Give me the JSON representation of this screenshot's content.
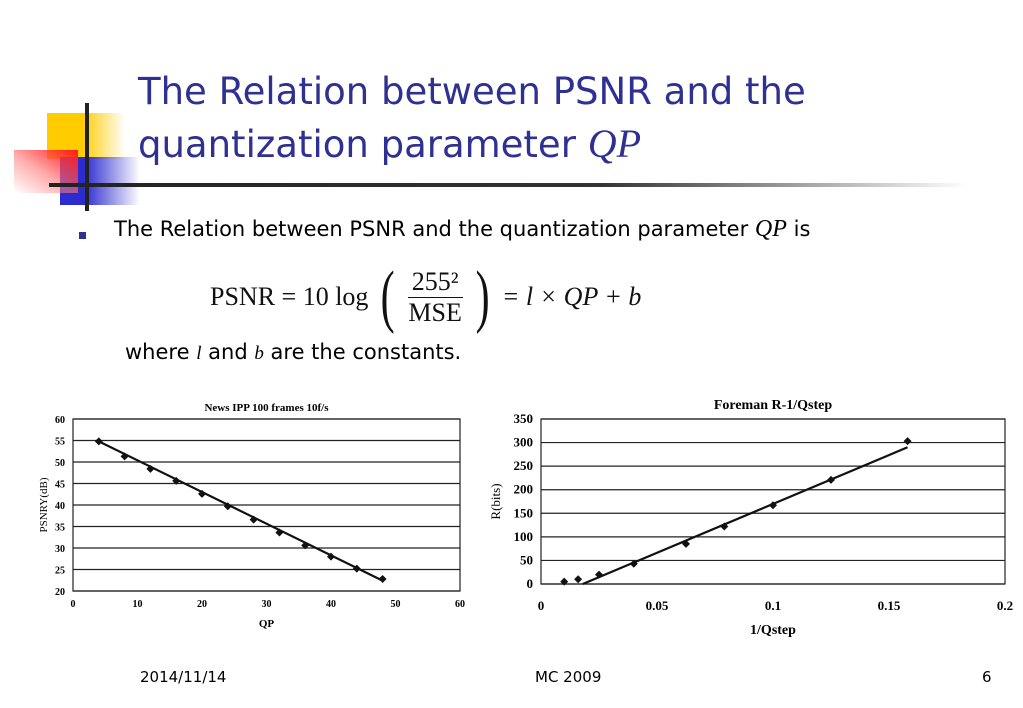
{
  "slide": {
    "title_line1": "The Relation between PSNR and the",
    "title_line2": "quantization parameter",
    "title_var": "QP",
    "bullet_text": "The Relation between PSNR and the quantization parameter",
    "bullet_var": "QP",
    "bullet_suffix": "is",
    "formula": {
      "lhs": "PSNR = 10 log",
      "numerator": "255²",
      "denominator": "MSE",
      "rhs": "= l × QP + b"
    },
    "where_prefix": "where",
    "where_var1": "l",
    "where_mid": "and",
    "where_var2": "b",
    "where_suffix": "are the constants."
  },
  "footer": {
    "date": "2014/11/14",
    "center": "MC 2009",
    "page": "6"
  },
  "colors": {
    "title": "#2E3192",
    "yellow": "#FFCC00",
    "blue": "#2B2BD0",
    "red": "#FF1A1A"
  },
  "chart_data": [
    {
      "type": "line",
      "title": "News IPP 100 frames 10f/s",
      "xlabel": "QP",
      "ylabel": "PSNRY(dB)",
      "xlim": [
        0,
        60
      ],
      "ylim": [
        20,
        60
      ],
      "xticks": [
        "0",
        "10",
        "20",
        "30",
        "40",
        "50",
        "60"
      ],
      "yticks": [
        "20",
        "25",
        "30",
        "35",
        "40",
        "45",
        "50",
        "55",
        "60"
      ],
      "grid": "horizontal",
      "x": [
        4,
        8,
        12,
        16,
        20,
        24,
        28,
        32,
        36,
        40,
        44,
        48
      ],
      "y": [
        54.8,
        51.3,
        48.4,
        45.6,
        42.6,
        39.7,
        36.6,
        33.6,
        30.6,
        28.0,
        25.2,
        22.8
      ],
      "trendline": [
        [
          4,
          54.8
        ],
        [
          48,
          22.4
        ]
      ]
    },
    {
      "type": "scatter",
      "title": "Foreman R-1/Qstep",
      "xlabel": "1/Qstep",
      "ylabel": "R(bits)",
      "xlim": [
        0,
        0.2
      ],
      "ylim": [
        0,
        350
      ],
      "xticks": [
        "0",
        "0.05",
        "0.1",
        "0.15",
        "0.2"
      ],
      "yticks": [
        "0",
        "50",
        "100",
        "150",
        "200",
        "250",
        "300",
        "350"
      ],
      "grid": "horizontal",
      "x": [
        0.01,
        0.016,
        0.025,
        0.04,
        0.0625,
        0.079,
        0.1,
        0.125,
        0.158
      ],
      "y": [
        5,
        10,
        20,
        43,
        85,
        122,
        167,
        221,
        303
      ],
      "trendline": [
        [
          0.018,
          0
        ],
        [
          0.158,
          290
        ]
      ]
    }
  ]
}
